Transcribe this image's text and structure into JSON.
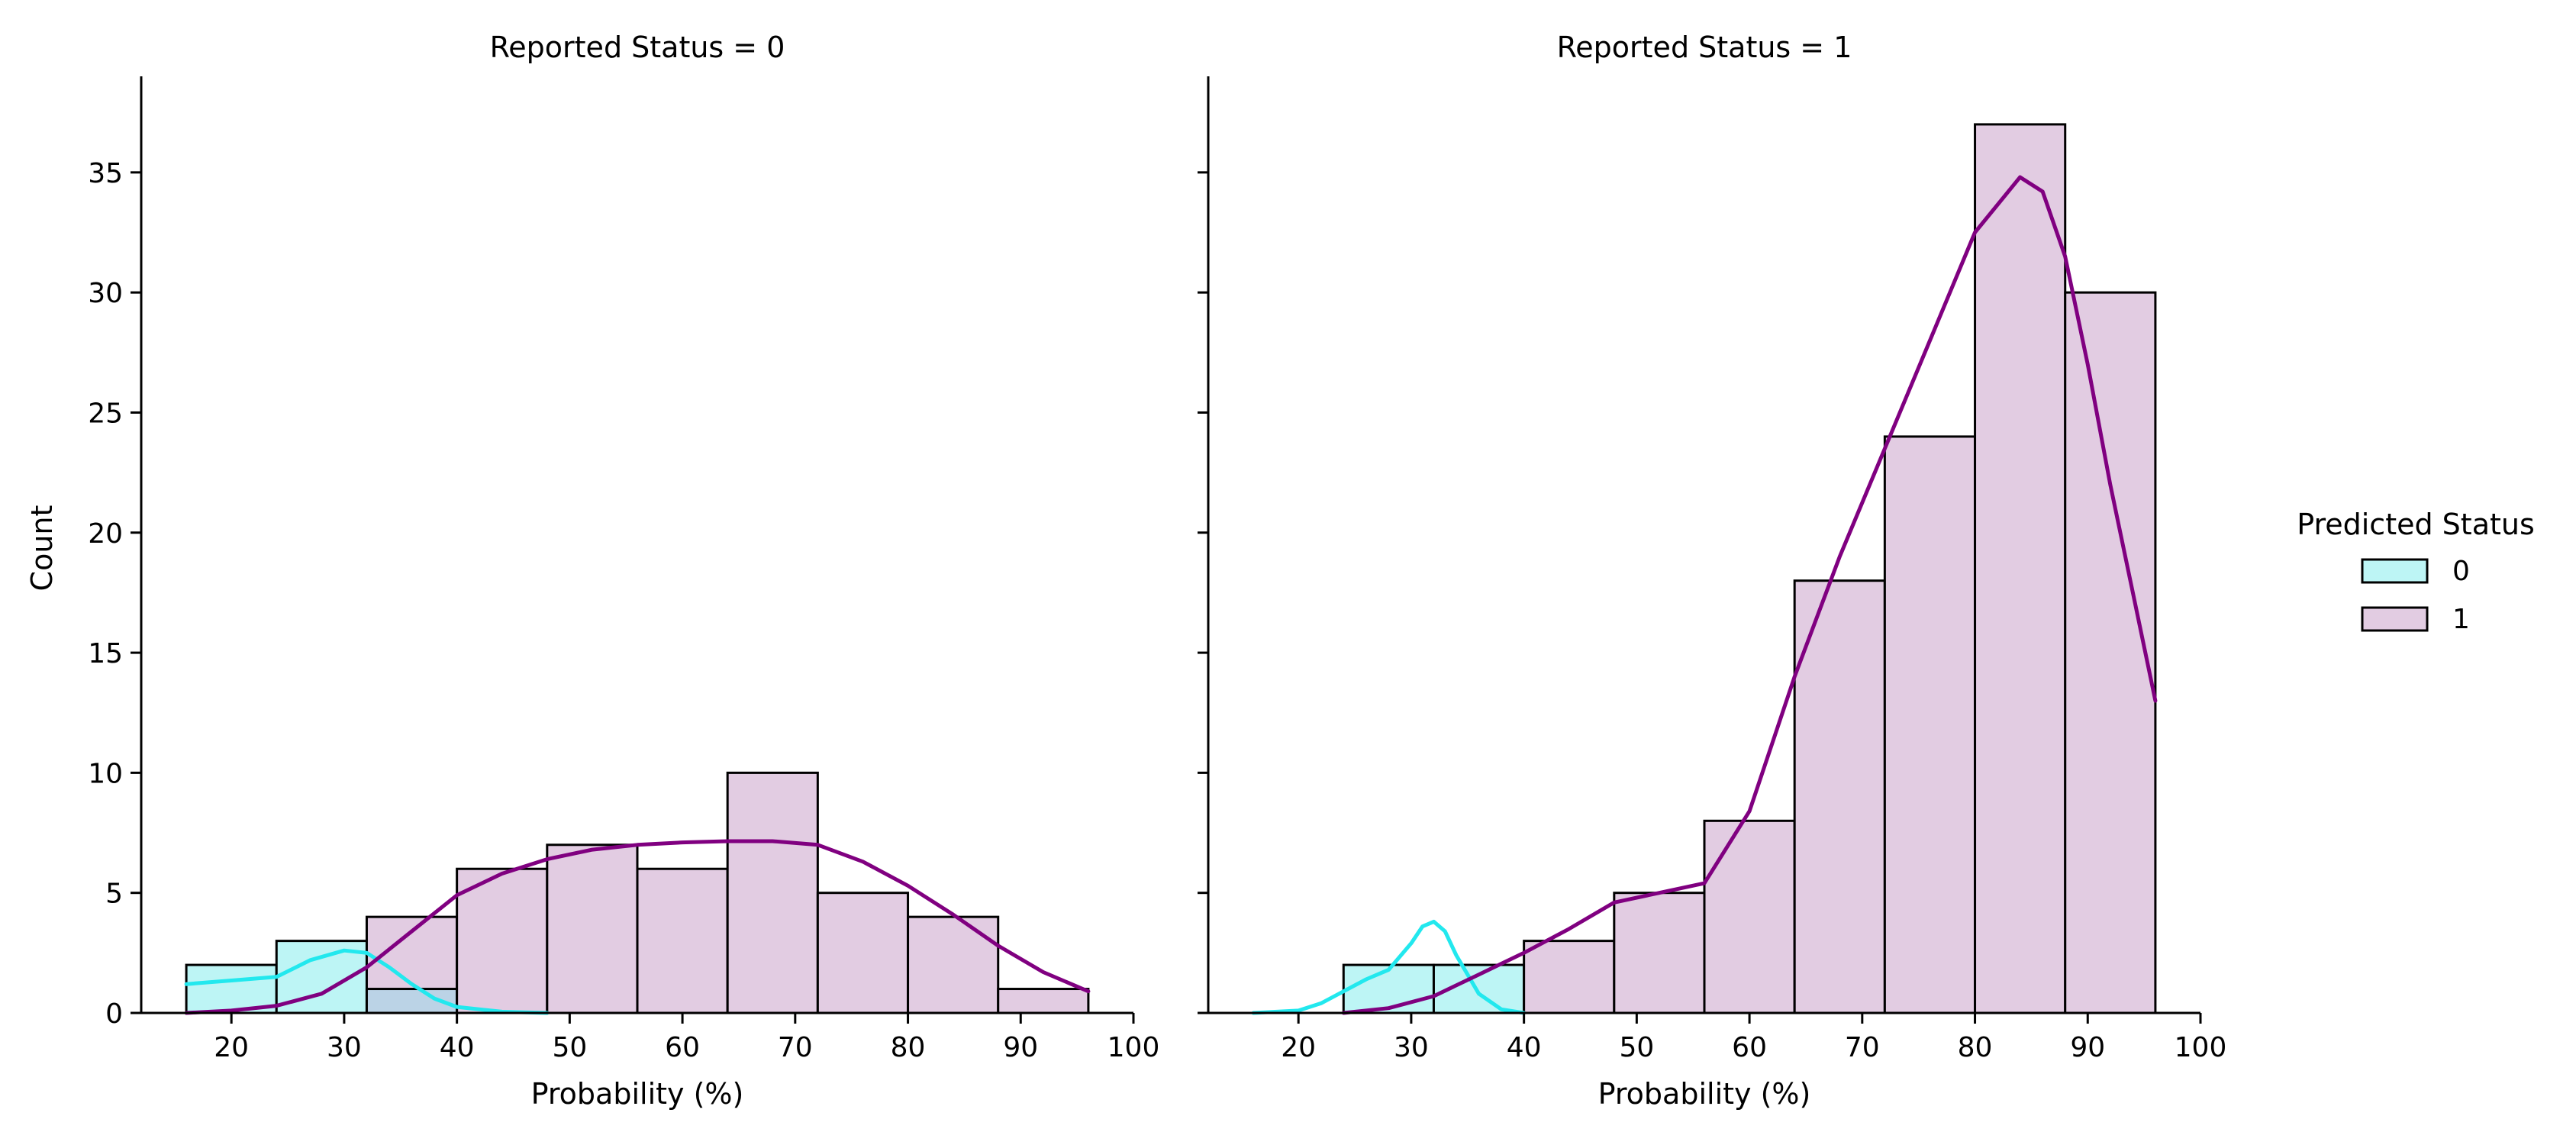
{
  "chart_data": {
    "type": "histogram",
    "shared_ylabel": "Count",
    "legend": {
      "title": "Predicted Status",
      "placement": "right",
      "entries": [
        {
          "label": "0",
          "color": "#00FFFF"
        },
        {
          "label": "1",
          "color": "#800080"
        }
      ]
    },
    "ylim": [
      0,
      39
    ],
    "yticks": [
      0,
      5,
      10,
      15,
      20,
      25,
      30,
      35
    ],
    "xlim": [
      12,
      100
    ],
    "xticks": [
      20,
      30,
      40,
      50,
      60,
      70,
      80,
      90,
      100
    ],
    "bin_edges": [
      16,
      24,
      32,
      40,
      48,
      56,
      64,
      72,
      80,
      88,
      96
    ],
    "panels": [
      {
        "title": "Reported Status = 0",
        "xlabel": "Probability (%)",
        "series": [
          {
            "name": "0",
            "values": [
              2,
              3,
              1,
              0,
              0,
              0,
              0,
              0,
              0,
              0
            ]
          },
          {
            "name": "1",
            "values": [
              0,
              0,
              4,
              6,
              7,
              6,
              10,
              5,
              4,
              1
            ]
          }
        ],
        "kde": [
          {
            "name": "0",
            "x": [
              16,
              20,
              24,
              27,
              30,
              32,
              34,
              36,
              38,
              40,
              44,
              48
            ],
            "y": [
              1.2,
              1.35,
              1.5,
              2.2,
              2.6,
              2.5,
              1.9,
              1.2,
              0.6,
              0.25,
              0.05,
              0
            ]
          },
          {
            "name": "1",
            "x": [
              16,
              20,
              24,
              28,
              32,
              36,
              40,
              44,
              48,
              52,
              56,
              60,
              64,
              68,
              72,
              76,
              80,
              84,
              88,
              92,
              96
            ],
            "y": [
              0,
              0.1,
              0.3,
              0.8,
              1.9,
              3.4,
              4.9,
              5.8,
              6.4,
              6.8,
              7.0,
              7.1,
              7.15,
              7.15,
              7.0,
              6.3,
              5.3,
              4.1,
              2.8,
              1.7,
              0.9
            ]
          }
        ]
      },
      {
        "title": "Reported Status = 1",
        "xlabel": "Probability (%)",
        "series": [
          {
            "name": "0",
            "values": [
              0,
              2,
              2,
              0,
              0,
              0,
              0,
              0,
              0,
              0
            ]
          },
          {
            "name": "1",
            "values": [
              0,
              0,
              0,
              3,
              5,
              8,
              18,
              24,
              37,
              30
            ]
          }
        ],
        "kde": [
          {
            "name": "0",
            "x": [
              16,
              20,
              22,
              24,
              26,
              28,
              30,
              31,
              32,
              33,
              34,
              35,
              36,
              38,
              40
            ],
            "y": [
              0,
              0.1,
              0.4,
              0.9,
              1.4,
              1.8,
              2.9,
              3.6,
              3.8,
              3.4,
              2.4,
              1.6,
              0.8,
              0.15,
              0
            ]
          },
          {
            "name": "1",
            "x": [
              24,
              28,
              32,
              36,
              40,
              44,
              48,
              52,
              56,
              60,
              64,
              68,
              72,
              76,
              80,
              84,
              86,
              88,
              90,
              92,
              94,
              96
            ],
            "y": [
              0,
              0.2,
              0.7,
              1.6,
              2.5,
              3.5,
              4.6,
              5.0,
              5.4,
              8.4,
              14.0,
              19.0,
              23.5,
              28.0,
              32.5,
              34.8,
              34.2,
              31.5,
              27.0,
              22.0,
              17.5,
              13.0
            ]
          }
        ]
      }
    ],
    "colors": {
      "cyan_fill": "#BDF5F5",
      "purple_fill": "#E2CCE2",
      "overlap_fill": "#BBD3E6",
      "cyan_line": "#22E8EE",
      "purple_line": "#800080",
      "bar_edge": "#000000"
    }
  }
}
